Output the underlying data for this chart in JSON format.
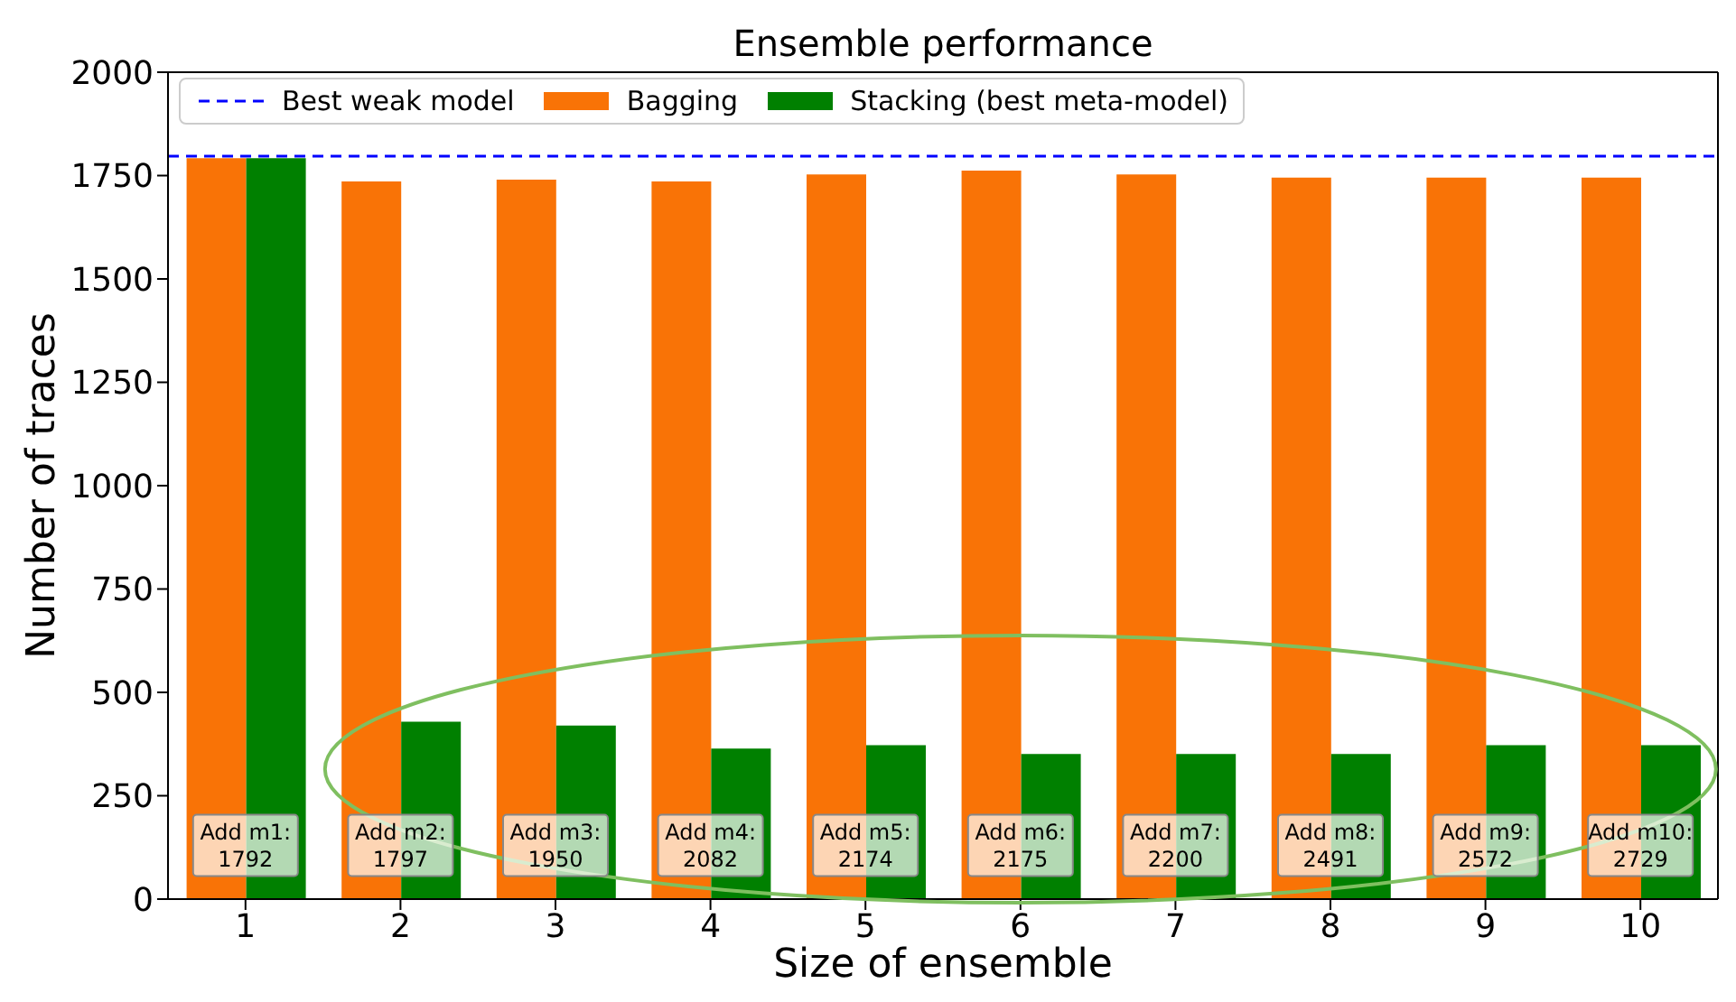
{
  "chart_data": {
    "type": "bar",
    "title": "Ensemble performance",
    "xlabel": "Size of ensemble",
    "ylabel": "Number of traces",
    "categories": [
      "1",
      "2",
      "3",
      "4",
      "5",
      "6",
      "7",
      "8",
      "9",
      "10"
    ],
    "series": [
      {
        "name": "Bagging",
        "color": "#f97306",
        "values": [
          1792,
          1736,
          1740,
          1736,
          1753,
          1762,
          1753,
          1745,
          1745,
          1745
        ]
      },
      {
        "name": "Stacking (best meta-model)",
        "color": "#008000",
        "values": [
          1792,
          429,
          420,
          364,
          372,
          351,
          351,
          351,
          372,
          372
        ]
      }
    ],
    "ylim": [
      0,
      2000
    ],
    "yticks": [
      0,
      250,
      500,
      750,
      1000,
      1250,
      1500,
      1750,
      2000
    ],
    "grid": false,
    "legend": "top left",
    "ref_lines": [
      {
        "axis": "y",
        "value": 1797,
        "label": "Best weak model",
        "color": "#0000ff",
        "line_style": "dashed"
      }
    ],
    "annotations": [
      {
        "text": "Add m1:\n1792",
        "x": "1",
        "y": 130
      },
      {
        "text": "Add m2:\n1797",
        "x": "2",
        "y": 130
      },
      {
        "text": "Add m3:\n1950",
        "x": "3",
        "y": 130
      },
      {
        "text": "Add m4:\n2082",
        "x": "4",
        "y": 130
      },
      {
        "text": "Add m5:\n2174",
        "x": "5",
        "y": 130
      },
      {
        "text": "Add m6:\n2175",
        "x": "6",
        "y": 130
      },
      {
        "text": "Add m7:\n2200",
        "x": "7",
        "y": 130
      },
      {
        "text": "Add m8:\n2491",
        "x": "8",
        "y": 130
      },
      {
        "text": "Add m9:\n2572",
        "x": "9",
        "y": 130
      },
      {
        "text": "Add m10:\n2729",
        "x": "10",
        "y": 130
      }
    ]
  }
}
